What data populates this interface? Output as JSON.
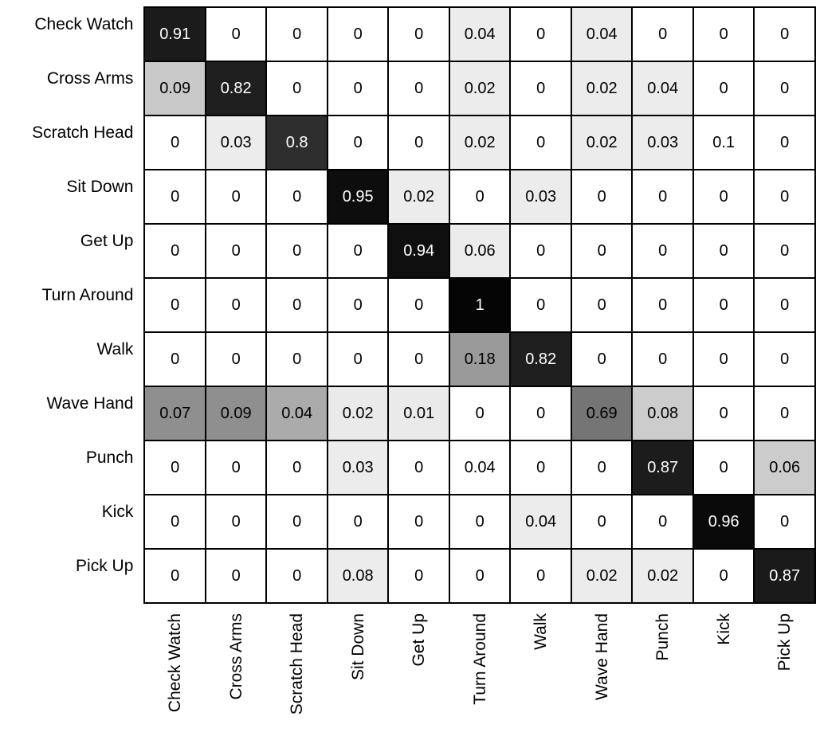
{
  "chart_data": {
    "type": "heatmap",
    "title": "",
    "xlabel": "",
    "ylabel": "",
    "value_range": [
      0,
      1
    ],
    "grid": true,
    "row_labels": [
      "Check Watch",
      "Cross Arms",
      "Scratch Head",
      "Sit Down",
      "Get Up",
      "Turn Around",
      "Walk",
      "Wave Hand",
      "Punch",
      "Kick",
      "Pick Up"
    ],
    "col_labels": [
      "Check Watch",
      "Cross Arms",
      "Scratch Head",
      "Sit Down",
      "Get Up",
      "Turn Around",
      "Walk",
      "Wave Hand",
      "Punch",
      "Kick",
      "Pick Up"
    ],
    "values": [
      [
        0.91,
        0,
        0,
        0,
        0,
        0.04,
        0,
        0.04,
        0,
        0,
        0
      ],
      [
        0.09,
        0.82,
        0,
        0,
        0,
        0.02,
        0,
        0.02,
        0.04,
        0,
        0
      ],
      [
        0,
        0.03,
        0.8,
        0,
        0,
        0.02,
        0,
        0.02,
        0.03,
        0.1,
        0
      ],
      [
        0,
        0,
        0,
        0.95,
        0.02,
        0,
        0.03,
        0,
        0,
        0,
        0
      ],
      [
        0,
        0,
        0,
        0,
        0.94,
        0.06,
        0,
        0,
        0,
        0,
        0
      ],
      [
        0,
        0,
        0,
        0,
        0,
        1,
        0,
        0,
        0,
        0,
        0
      ],
      [
        0,
        0,
        0,
        0,
        0,
        0.18,
        0.82,
        0,
        0,
        0,
        0
      ],
      [
        0.07,
        0.09,
        0.04,
        0.02,
        0.01,
        0,
        0,
        0.69,
        0.08,
        0,
        0
      ],
      [
        0,
        0,
        0,
        0.03,
        0,
        0.04,
        0,
        0,
        0.87,
        0,
        0.06
      ],
      [
        0,
        0,
        0,
        0,
        0,
        0,
        0.04,
        0,
        0,
        0.96,
        0
      ],
      [
        0,
        0,
        0,
        0.08,
        0,
        0,
        0,
        0.02,
        0.02,
        0,
        0.87
      ]
    ],
    "cell_colors": [
      [
        "#1b1b1b",
        "#ffffff",
        "#ffffff",
        "#ffffff",
        "#ffffff",
        "#ececec",
        "#ffffff",
        "#ececec",
        "#ffffff",
        "#ffffff",
        "#ffffff"
      ],
      [
        "#c9c9c9",
        "#1f1f1f",
        "#ffffff",
        "#ffffff",
        "#ffffff",
        "#ececec",
        "#ffffff",
        "#ececec",
        "#ececec",
        "#ffffff",
        "#ffffff"
      ],
      [
        "#ffffff",
        "#ececec",
        "#2e2e2e",
        "#ffffff",
        "#ffffff",
        "#ececec",
        "#ffffff",
        "#ececec",
        "#ececec",
        "#ffffff",
        "#ffffff"
      ],
      [
        "#ffffff",
        "#ffffff",
        "#ffffff",
        "#0d0d0d",
        "#ececec",
        "#ffffff",
        "#ececec",
        "#ffffff",
        "#ffffff",
        "#ffffff",
        "#ffffff"
      ],
      [
        "#ffffff",
        "#ffffff",
        "#ffffff",
        "#ffffff",
        "#0f0f0f",
        "#ececec",
        "#ffffff",
        "#ffffff",
        "#ffffff",
        "#ffffff",
        "#ffffff"
      ],
      [
        "#ffffff",
        "#ffffff",
        "#ffffff",
        "#ffffff",
        "#ffffff",
        "#050505",
        "#ffffff",
        "#ffffff",
        "#ffffff",
        "#ffffff",
        "#ffffff"
      ],
      [
        "#ffffff",
        "#ffffff",
        "#ffffff",
        "#ffffff",
        "#ffffff",
        "#9a9a9a",
        "#1f1f1f",
        "#ffffff",
        "#ffffff",
        "#ffffff",
        "#ffffff"
      ],
      [
        "#8f8f8f",
        "#8f8f8f",
        "#ababab",
        "#eaeaea",
        "#eaeaea",
        "#ffffff",
        "#ffffff",
        "#757575",
        "#cccccc",
        "#ffffff",
        "#ffffff"
      ],
      [
        "#ffffff",
        "#ffffff",
        "#ffffff",
        "#ececec",
        "#ffffff",
        "#ffffff",
        "#ffffff",
        "#ffffff",
        "#1c1c1c",
        "#ffffff",
        "#cccccc"
      ],
      [
        "#ffffff",
        "#ffffff",
        "#ffffff",
        "#ffffff",
        "#ffffff",
        "#ffffff",
        "#ececec",
        "#ffffff",
        "#ffffff",
        "#0a0a0a",
        "#ffffff"
      ],
      [
        "#ffffff",
        "#ffffff",
        "#ffffff",
        "#ececec",
        "#ffffff",
        "#ffffff",
        "#ffffff",
        "#ececec",
        "#ececec",
        "#ffffff",
        "#1a1a1a"
      ]
    ],
    "style": {
      "border_color": "#000000",
      "text_dark": "#000000",
      "text_light": "#ffffff"
    }
  }
}
